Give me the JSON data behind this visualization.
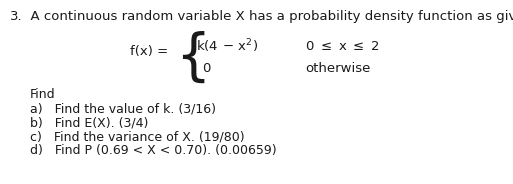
{
  "question_number": "3.",
  "question_text": "  A continuous random variable X has a probability density function as given below:",
  "fx_label": "f(x) = ",
  "piece1_expr": "k(4 - x²)",
  "piece1_cond": "0 ≤ x ≤ 2",
  "piece2_expr": "0",
  "piece2_cond": "otherwise",
  "find_label": "Find",
  "part_a": "a)   Find the value of k. (3/16)",
  "part_b": "b)   Find E(X). (3/4)",
  "part_c": "c)   Find the variance of X. (19/80)",
  "part_d": "d)   Find P (0.69 < X < 0.70). (0.00659)",
  "bg_color": "#ffffff",
  "text_color": "#1a1a1a",
  "font_size_title": 9.5,
  "font_size_formula": 9.5,
  "font_size_parts": 9.0
}
